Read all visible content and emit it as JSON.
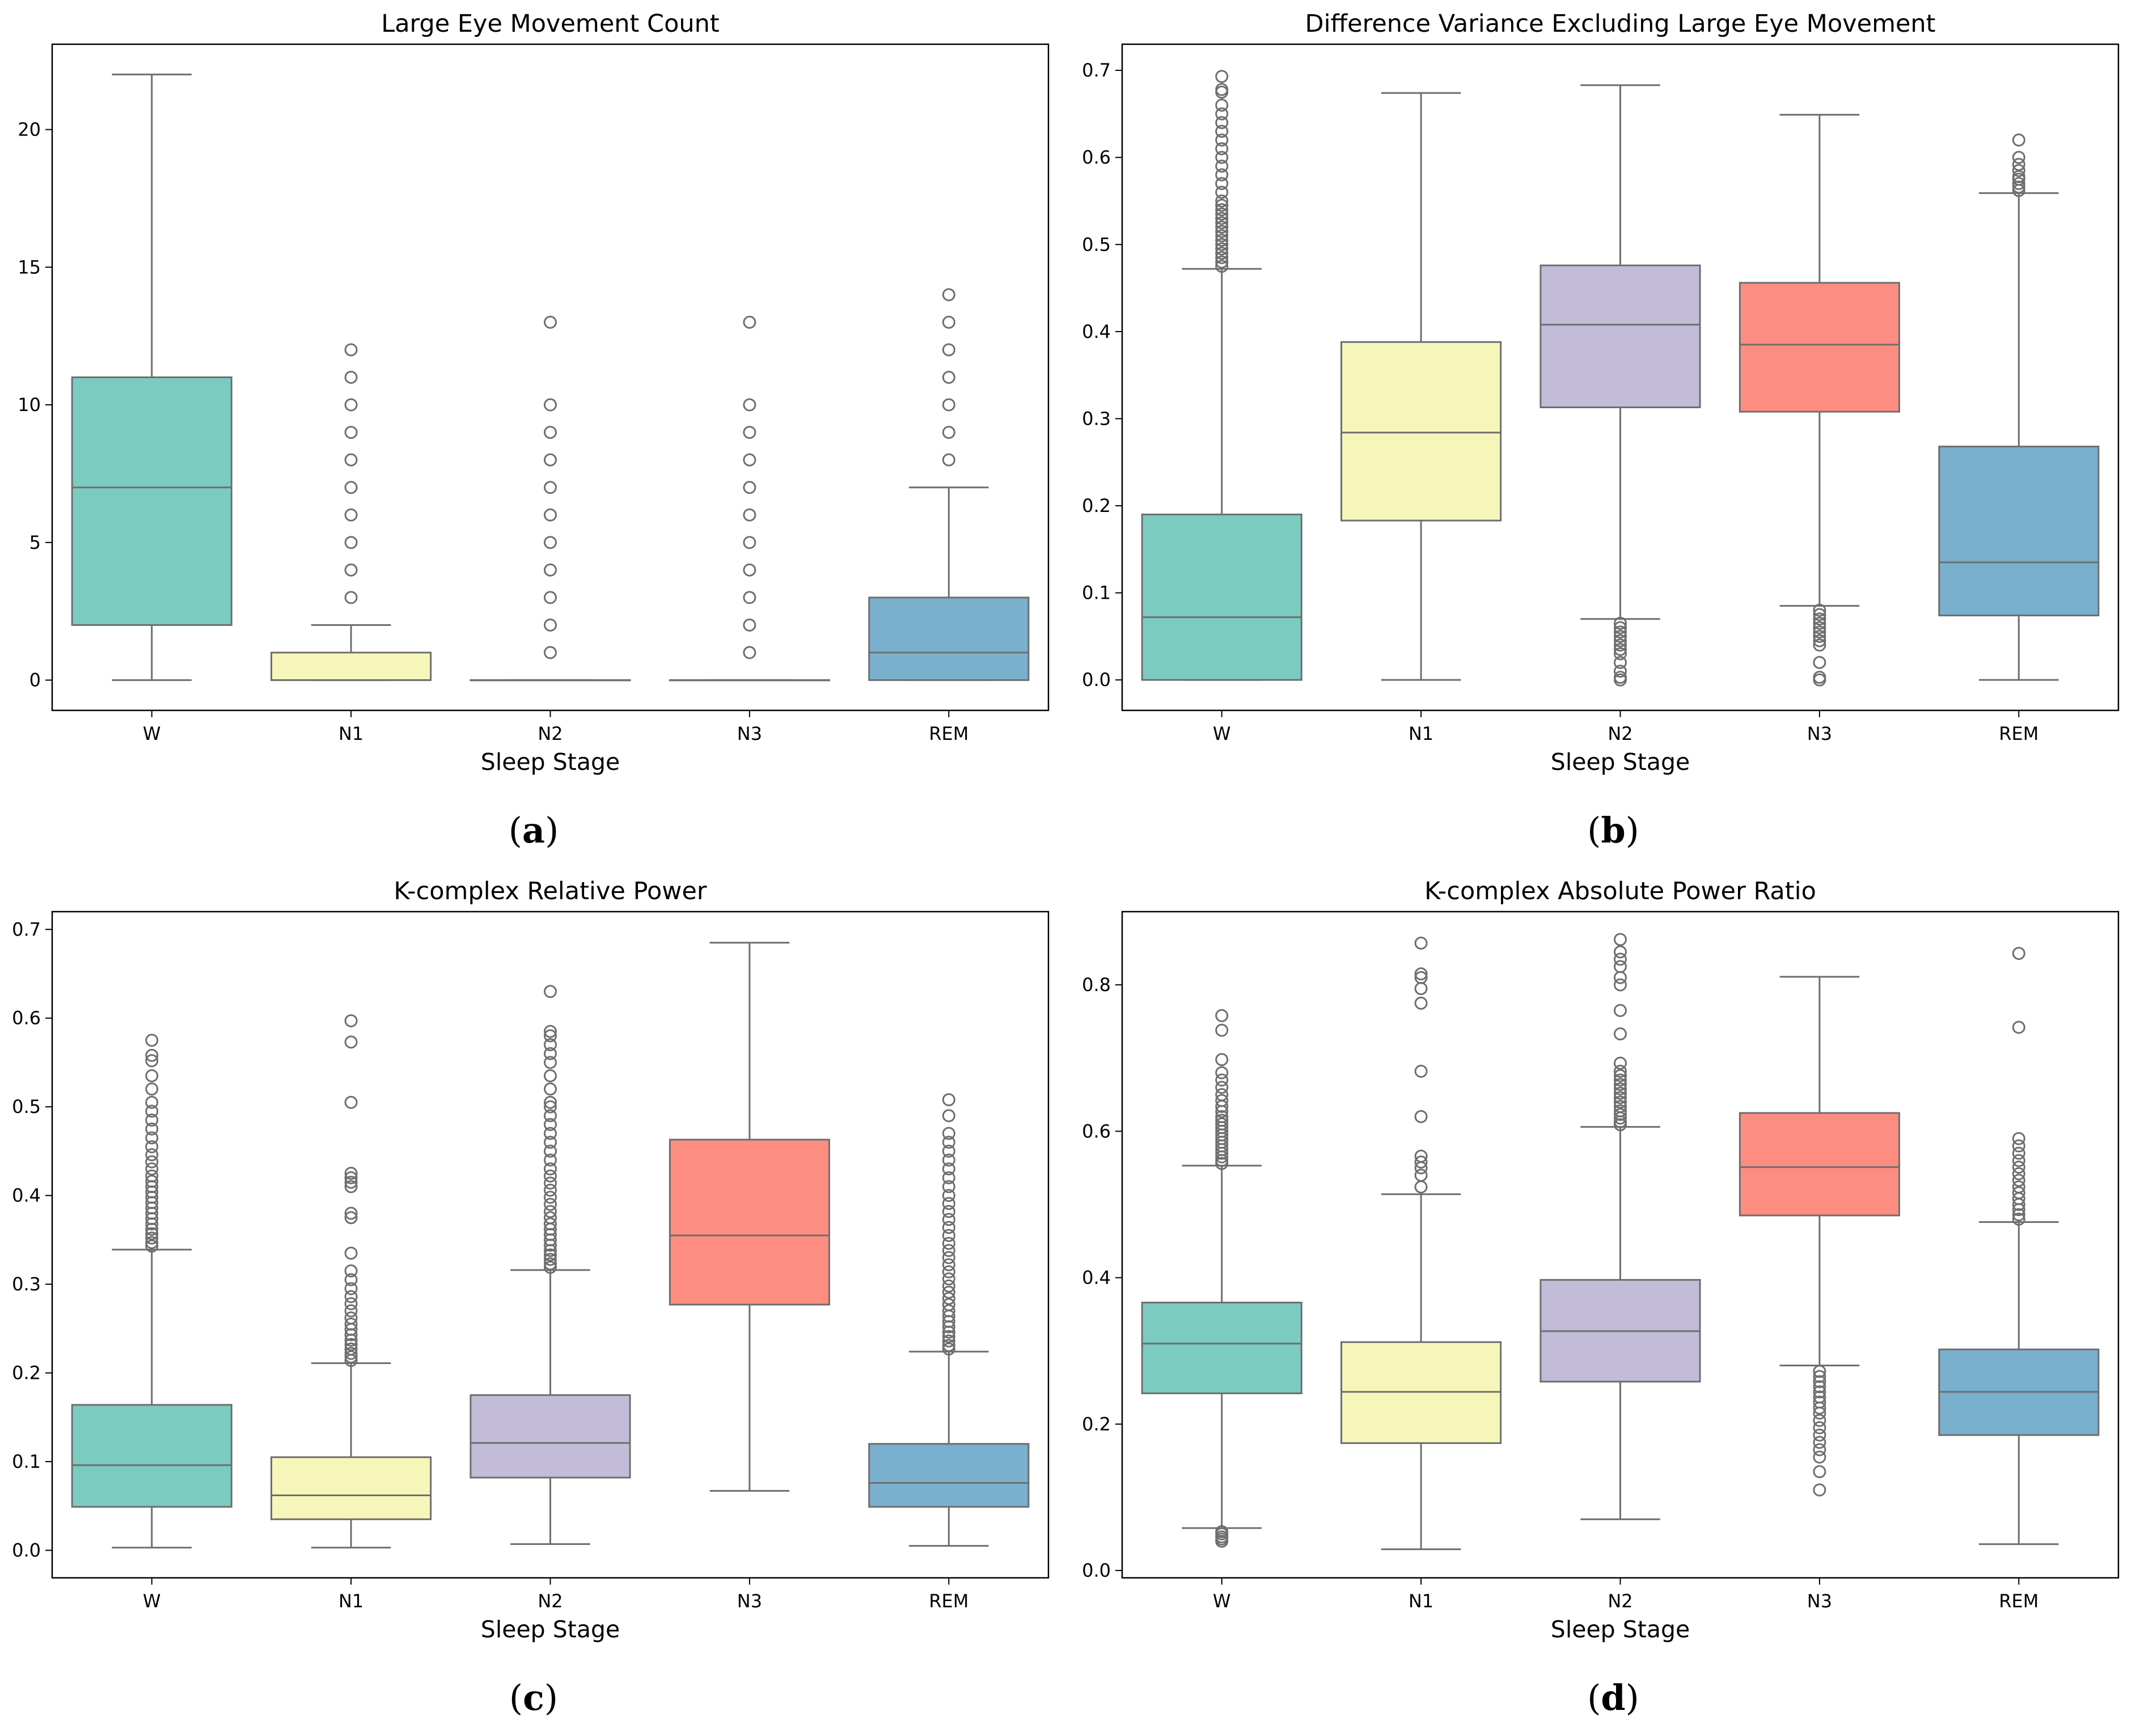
{
  "captions": [
    {
      "open": "(",
      "letter": "a",
      "close": ")"
    },
    {
      "open": "(",
      "letter": "b",
      "close": ")"
    },
    {
      "open": "(",
      "letter": "c",
      "close": ")"
    },
    {
      "open": "(",
      "letter": "d",
      "close": ")"
    }
  ],
  "colors": {
    "W": "#7ccbc0",
    "N1": "#f7f6ba",
    "N2": "#c2bcd9",
    "N3": "#fe8d81",
    "REM": "#79b0ce",
    "line": "#6e6e6e"
  },
  "chart_data": [
    {
      "type": "box",
      "title": "Large Eye Movement Count",
      "xlabel": "Sleep Stage",
      "ylabel": "",
      "categories": [
        "W",
        "N1",
        "N2",
        "N3",
        "REM"
      ],
      "ylim": [
        -1.1,
        23.1
      ],
      "yticks": [
        0,
        5,
        10,
        15,
        20
      ],
      "ytick_labels": [
        "0",
        "5",
        "10",
        "15",
        "20"
      ],
      "boxes": [
        {
          "whislo": 0,
          "q1": 2,
          "med": 7,
          "q3": 11,
          "whishi": 22,
          "fliers": []
        },
        {
          "whislo": 0,
          "q1": 0,
          "med": 0,
          "q3": 1,
          "whishi": 2,
          "fliers": [
            3,
            4,
            5,
            6,
            7,
            8,
            9,
            10,
            11,
            12
          ]
        },
        {
          "whislo": 0,
          "q1": 0,
          "med": 0,
          "q3": 0,
          "whishi": 0,
          "fliers": [
            1,
            2,
            3,
            4,
            5,
            6,
            7,
            8,
            9,
            10,
            13
          ]
        },
        {
          "whislo": 0,
          "q1": 0,
          "med": 0,
          "q3": 0,
          "whishi": 0,
          "fliers": [
            1,
            2,
            3,
            4,
            5,
            6,
            7,
            8,
            9,
            10,
            13
          ]
        },
        {
          "whislo": 0,
          "q1": 0,
          "med": 1,
          "q3": 3,
          "whishi": 7,
          "fliers": [
            8,
            9,
            10,
            11,
            12,
            13,
            14
          ]
        }
      ]
    },
    {
      "type": "box",
      "title": "Difference Variance Excluding Large Eye Movement",
      "xlabel": "Sleep Stage",
      "ylabel": "",
      "categories": [
        "W",
        "N1",
        "N2",
        "N3",
        "REM"
      ],
      "ylim": [
        -0.035,
        0.73
      ],
      "yticks": [
        0.0,
        0.1,
        0.2,
        0.3,
        0.4,
        0.5,
        0.6,
        0.7
      ],
      "ytick_labels": [
        "0.0",
        "0.1",
        "0.2",
        "0.3",
        "0.4",
        "0.5",
        "0.6",
        "0.7"
      ],
      "boxes": [
        {
          "whislo": 0.0,
          "q1": 0.0,
          "med": 0.072,
          "q3": 0.19,
          "whishi": 0.472,
          "fliers": [
            0.475,
            0.48,
            0.485,
            0.49,
            0.495,
            0.5,
            0.505,
            0.51,
            0.515,
            0.52,
            0.525,
            0.53,
            0.535,
            0.54,
            0.545,
            0.55,
            0.56,
            0.57,
            0.58,
            0.59,
            0.6,
            0.61,
            0.62,
            0.63,
            0.64,
            0.65,
            0.66,
            0.675,
            0.678,
            0.693
          ]
        },
        {
          "whislo": 0.0,
          "q1": 0.183,
          "med": 0.284,
          "q3": 0.388,
          "whishi": 0.674,
          "fliers": []
        },
        {
          "whislo": 0.07,
          "q1": 0.313,
          "med": 0.408,
          "q3": 0.476,
          "whishi": 0.683,
          "fliers": [
            0.0,
            0.003,
            0.01,
            0.02,
            0.03,
            0.035,
            0.04,
            0.045,
            0.05,
            0.055,
            0.06,
            0.065
          ]
        },
        {
          "whislo": 0.085,
          "q1": 0.308,
          "med": 0.385,
          "q3": 0.456,
          "whishi": 0.649,
          "fliers": [
            0.0,
            0.003,
            0.02,
            0.04,
            0.045,
            0.05,
            0.055,
            0.06,
            0.065,
            0.07,
            0.075,
            0.08
          ]
        },
        {
          "whislo": 0.0,
          "q1": 0.074,
          "med": 0.135,
          "q3": 0.268,
          "whishi": 0.559,
          "fliers": [
            0.562,
            0.566,
            0.57,
            0.575,
            0.578,
            0.585,
            0.592,
            0.6,
            0.62
          ]
        }
      ]
    },
    {
      "type": "box",
      "title": "K-complex Relative Power",
      "xlabel": "Sleep Stage",
      "ylabel": "",
      "categories": [
        "W",
        "N1",
        "N2",
        "N3",
        "REM"
      ],
      "ylim": [
        -0.031,
        0.72
      ],
      "yticks": [
        0.0,
        0.1,
        0.2,
        0.3,
        0.4,
        0.5,
        0.6,
        0.7
      ],
      "ytick_labels": [
        "0.0",
        "0.1",
        "0.2",
        "0.3",
        "0.4",
        "0.5",
        "0.6",
        "0.7"
      ],
      "boxes": [
        {
          "whislo": 0.003,
          "q1": 0.049,
          "med": 0.096,
          "q3": 0.164,
          "whishi": 0.339,
          "fliers": [
            0.343,
            0.347,
            0.352,
            0.357,
            0.362,
            0.368,
            0.374,
            0.38,
            0.386,
            0.392,
            0.398,
            0.404,
            0.41,
            0.416,
            0.422,
            0.43,
            0.438,
            0.446,
            0.455,
            0.465,
            0.475,
            0.485,
            0.495,
            0.505,
            0.52,
            0.535,
            0.552,
            0.558,
            0.575
          ]
        },
        {
          "whislo": 0.003,
          "q1": 0.035,
          "med": 0.062,
          "q3": 0.105,
          "whishi": 0.211,
          "fliers": [
            0.214,
            0.218,
            0.222,
            0.227,
            0.232,
            0.237,
            0.243,
            0.249,
            0.255,
            0.262,
            0.27,
            0.278,
            0.286,
            0.295,
            0.305,
            0.315,
            0.335,
            0.375,
            0.38,
            0.41,
            0.415,
            0.42,
            0.425,
            0.505,
            0.573,
            0.597
          ]
        },
        {
          "whislo": 0.007,
          "q1": 0.082,
          "med": 0.121,
          "q3": 0.175,
          "whishi": 0.316,
          "fliers": [
            0.319,
            0.323,
            0.328,
            0.333,
            0.338,
            0.344,
            0.35,
            0.356,
            0.362,
            0.368,
            0.375,
            0.382,
            0.39,
            0.398,
            0.406,
            0.414,
            0.422,
            0.43,
            0.44,
            0.45,
            0.46,
            0.47,
            0.48,
            0.49,
            0.5,
            0.505,
            0.52,
            0.535,
            0.55,
            0.56,
            0.57,
            0.58,
            0.585,
            0.63
          ]
        },
        {
          "whislo": 0.067,
          "q1": 0.277,
          "med": 0.355,
          "q3": 0.463,
          "whishi": 0.685,
          "fliers": []
        },
        {
          "whislo": 0.005,
          "q1": 0.049,
          "med": 0.076,
          "q3": 0.12,
          "whishi": 0.224,
          "fliers": [
            0.227,
            0.231,
            0.236,
            0.241,
            0.246,
            0.252,
            0.258,
            0.264,
            0.27,
            0.277,
            0.284,
            0.291,
            0.298,
            0.306,
            0.314,
            0.322,
            0.33,
            0.338,
            0.346,
            0.355,
            0.364,
            0.373,
            0.382,
            0.391,
            0.4,
            0.41,
            0.42,
            0.43,
            0.44,
            0.45,
            0.46,
            0.47,
            0.49,
            0.508
          ]
        }
      ]
    },
    {
      "type": "box",
      "title": "K-complex Absolute Power Ratio",
      "xlabel": "Sleep Stage",
      "ylabel": "",
      "categories": [
        "W",
        "N1",
        "N2",
        "N3",
        "REM"
      ],
      "ylim": [
        -0.01,
        0.9
      ],
      "yticks": [
        0.0,
        0.2,
        0.4,
        0.6,
        0.8
      ],
      "ytick_labels": [
        "0.0",
        "0.2",
        "0.4",
        "0.6",
        "0.8"
      ],
      "boxes": [
        {
          "whislo": 0.058,
          "q1": 0.242,
          "med": 0.31,
          "q3": 0.366,
          "whishi": 0.553,
          "fliers": [
            0.04,
            0.043,
            0.046,
            0.05,
            0.053,
            0.556,
            0.56,
            0.565,
            0.57,
            0.575,
            0.58,
            0.585,
            0.59,
            0.595,
            0.6,
            0.605,
            0.61,
            0.615,
            0.62,
            0.627,
            0.634,
            0.642,
            0.65,
            0.66,
            0.67,
            0.68,
            0.698,
            0.738,
            0.758
          ]
        },
        {
          "whislo": 0.029,
          "q1": 0.174,
          "med": 0.244,
          "q3": 0.312,
          "whishi": 0.514,
          "fliers": [
            0.524,
            0.54,
            0.55,
            0.558,
            0.566,
            0.62,
            0.682,
            0.775,
            0.795,
            0.81,
            0.815,
            0.857
          ]
        },
        {
          "whislo": 0.07,
          "q1": 0.258,
          "med": 0.327,
          "q3": 0.397,
          "whishi": 0.606,
          "fliers": [
            0.609,
            0.613,
            0.618,
            0.623,
            0.628,
            0.634,
            0.64,
            0.646,
            0.652,
            0.658,
            0.664,
            0.67,
            0.676,
            0.682,
            0.693,
            0.733,
            0.765,
            0.8,
            0.81,
            0.825,
            0.835,
            0.845,
            0.862
          ]
        },
        {
          "whislo": 0.28,
          "q1": 0.485,
          "med": 0.551,
          "q3": 0.625,
          "whishi": 0.811,
          "fliers": [
            0.11,
            0.135,
            0.155,
            0.165,
            0.175,
            0.185,
            0.195,
            0.205,
            0.215,
            0.222,
            0.23,
            0.237,
            0.244,
            0.251,
            0.258,
            0.265,
            0.272
          ]
        },
        {
          "whislo": 0.036,
          "q1": 0.185,
          "med": 0.244,
          "q3": 0.302,
          "whishi": 0.476,
          "fliers": [
            0.48,
            0.486,
            0.493,
            0.5,
            0.508,
            0.516,
            0.524,
            0.533,
            0.542,
            0.551,
            0.56,
            0.57,
            0.58,
            0.59,
            0.742,
            0.843
          ]
        }
      ]
    }
  ]
}
